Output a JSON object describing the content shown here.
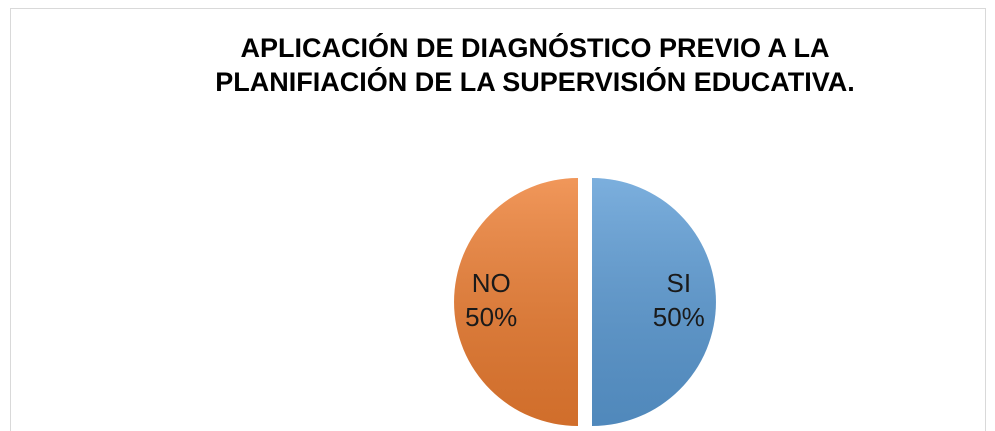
{
  "chart_data": {
    "type": "pie",
    "title": [
      "APLICACIÓN DE DIAGNÓSTICO PREVIO A LA",
      "PLANIFIACIÓN DE LA SUPERVISIÓN EDUCATIVA."
    ],
    "categories": [
      "SI",
      "NO"
    ],
    "values": [
      50,
      50
    ],
    "value_labels": [
      "50%",
      "50%"
    ],
    "colors": [
      "#5b9bd5",
      "#ed7d31"
    ]
  }
}
